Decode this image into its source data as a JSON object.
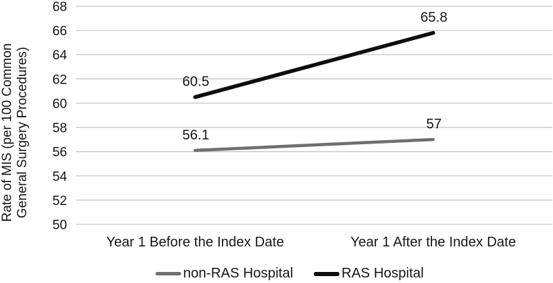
{
  "chart_data": {
    "type": "line",
    "title": "",
    "categories": [
      "Year 1 Before the Index Date",
      "Year 1 After the Index Date"
    ],
    "series": [
      {
        "name": "non-RAS Hospital",
        "values": [
          56.1,
          57
        ],
        "point_labels": [
          "56.1",
          "57"
        ],
        "color": "#6f6f6f",
        "stroke_width": 4.5
      },
      {
        "name": "RAS Hospital",
        "values": [
          60.5,
          65.8
        ],
        "point_labels": [
          "60.5",
          "65.8"
        ],
        "color": "#0d0d0d",
        "stroke_width": 5.5
      }
    ],
    "ylabel": "Rate of MIS (per 100 Common General Surgery Procedures)",
    "ylabel_lines": [
      "Rate of MIS (per 100 Common",
      "General Surgery Procedures)"
    ],
    "ylim": [
      50,
      68
    ],
    "yticks": [
      50,
      52,
      54,
      56,
      58,
      60,
      62,
      64,
      66,
      68
    ],
    "grid": true,
    "legend_position": "bottom",
    "colors": {
      "gridline": "#c7c7c7",
      "text": "#161616",
      "background": "#ffffff"
    }
  }
}
